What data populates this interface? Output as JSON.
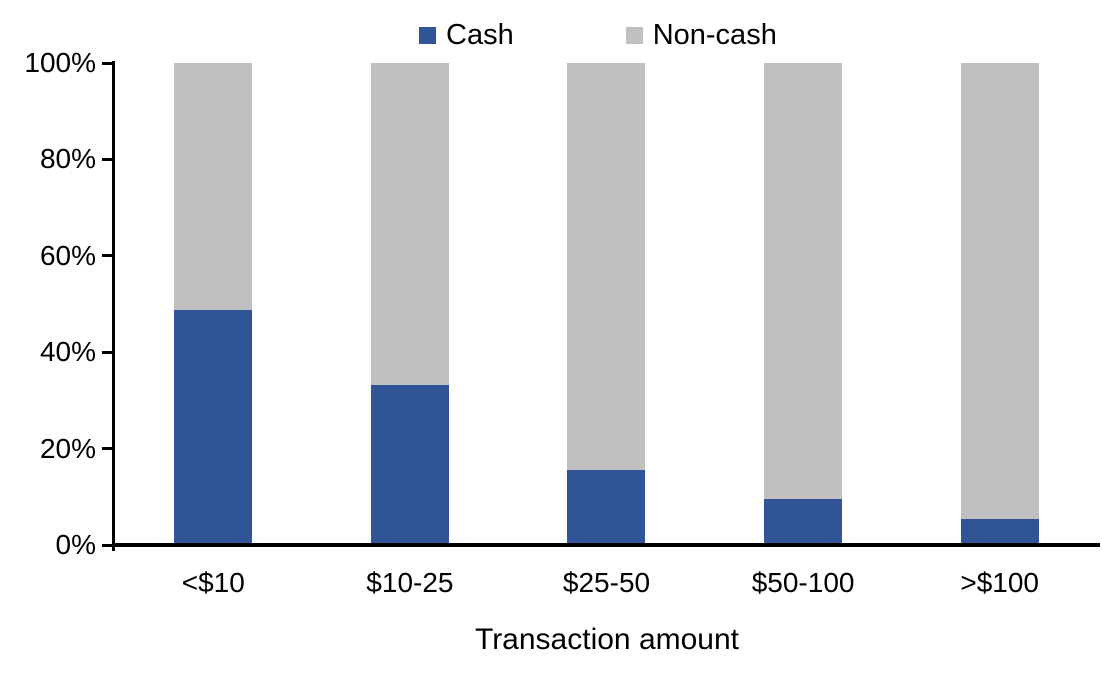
{
  "chart_data": {
    "type": "bar",
    "subtype": "stacked-100-percent",
    "title": "",
    "xlabel": "Transaction amount",
    "ylabel": "",
    "categories": [
      "<$10",
      "$10-25",
      "$25-50",
      "$50-100",
      ">$100"
    ],
    "series": [
      {
        "name": "Cash",
        "color": "#305496",
        "values": [
          48.8,
          33.3,
          15.6,
          9.5,
          5.4
        ]
      },
      {
        "name": "Non-cash",
        "color": "#C0C0C0",
        "values": [
          51.2,
          66.7,
          84.4,
          90.5,
          94.6
        ]
      }
    ],
    "ylim": [
      0,
      100
    ],
    "ytick_labels": [
      "0%",
      "20%",
      "40%",
      "60%",
      "80%",
      "100%"
    ],
    "grid": false,
    "legend_position": "top-center",
    "axis_color": "#000000",
    "text_color": "#000000",
    "background_color": "#FFFFFF"
  }
}
